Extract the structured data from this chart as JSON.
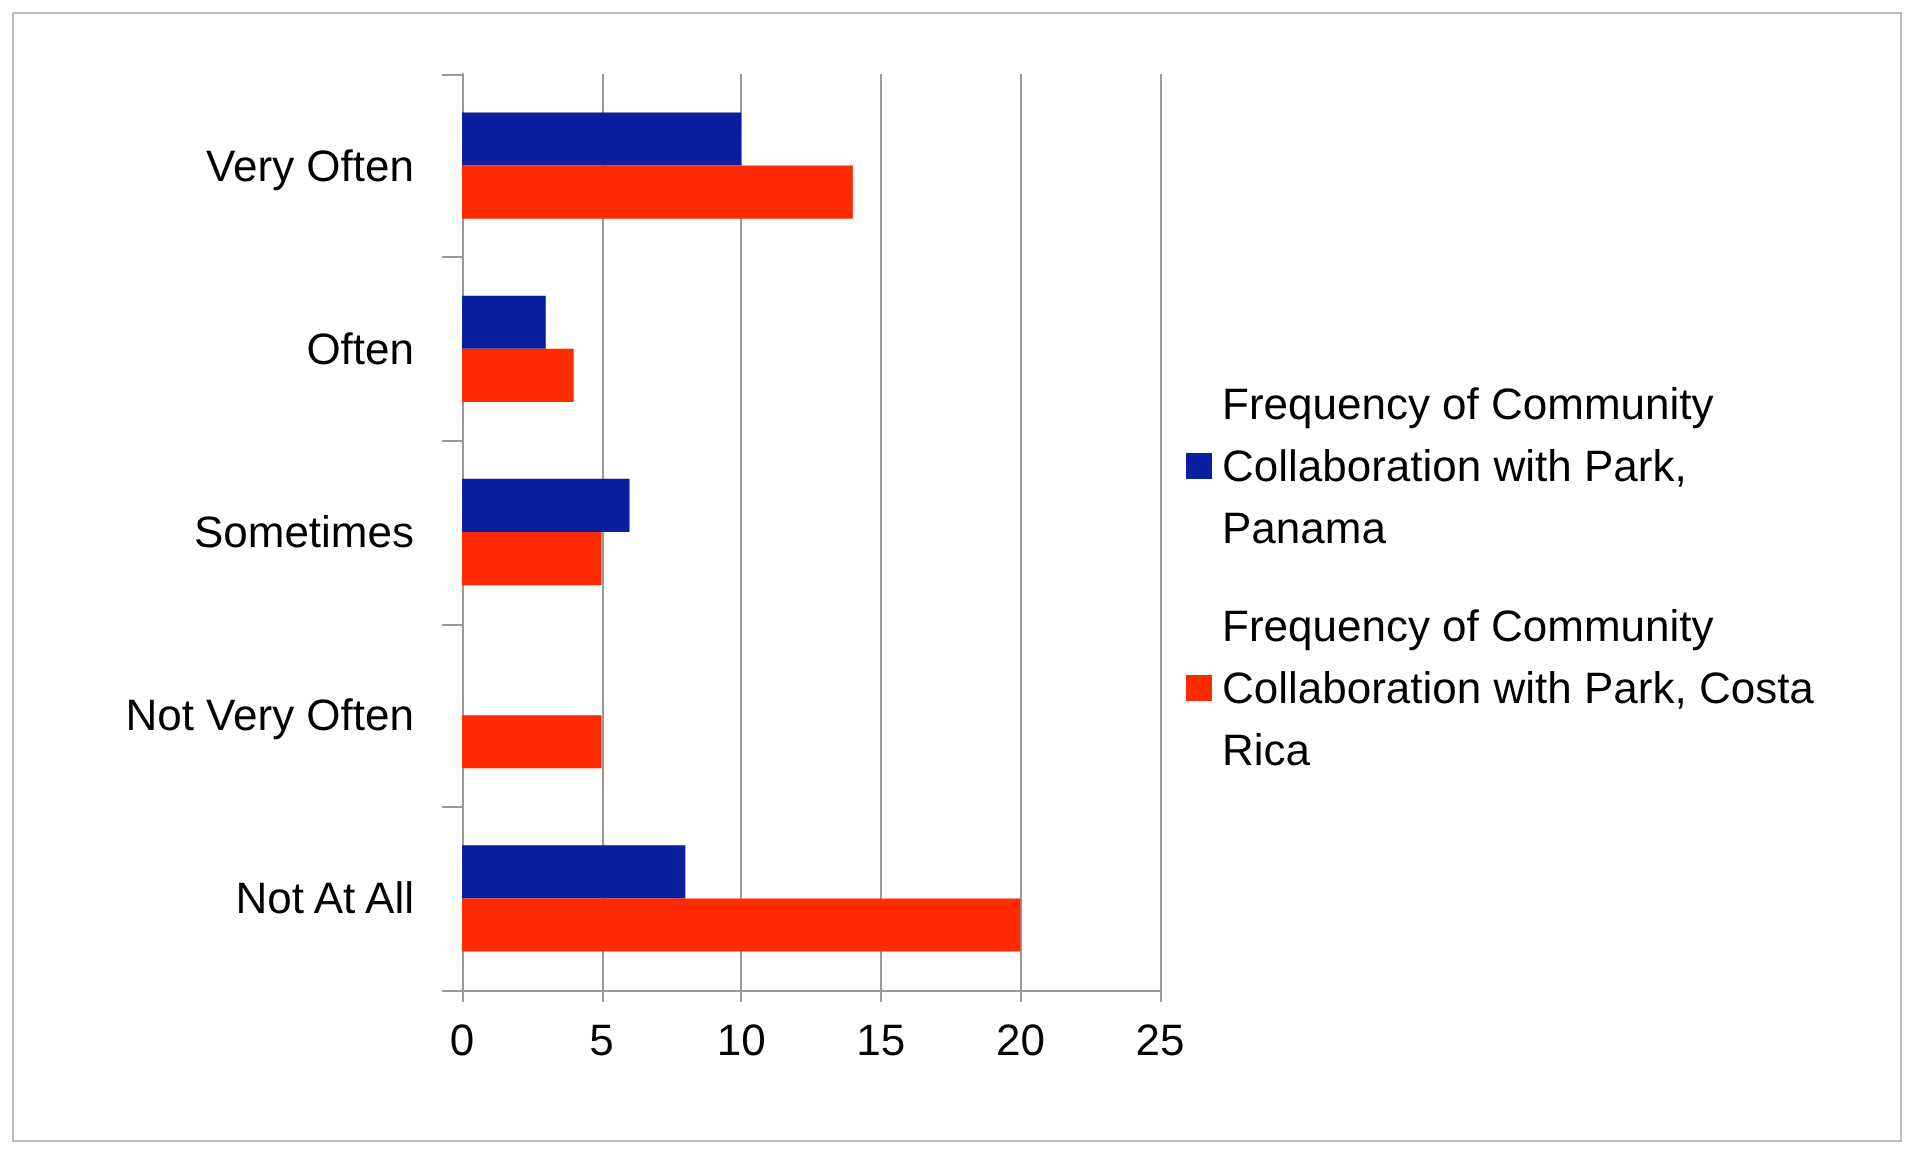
{
  "chart_data": {
    "type": "bar",
    "orientation": "horizontal",
    "categories": [
      "Very Often",
      "Often",
      "Sometimes",
      "Not Very Often",
      "Not At All"
    ],
    "series": [
      {
        "name": "Frequency of Community Collaboration with Park, Panama",
        "color": "#0a1fa0",
        "values": [
          10,
          3,
          6,
          0,
          8
        ]
      },
      {
        "name": "Frequency of Community Collaboration with Park, Costa Rica",
        "color": "#ff2a00",
        "values": [
          14,
          4,
          5,
          5,
          20
        ]
      }
    ],
    "xlim": [
      0,
      25
    ],
    "xticks": [
      0,
      5,
      10,
      15,
      20,
      25
    ],
    "grid": "x",
    "legend": "right"
  }
}
